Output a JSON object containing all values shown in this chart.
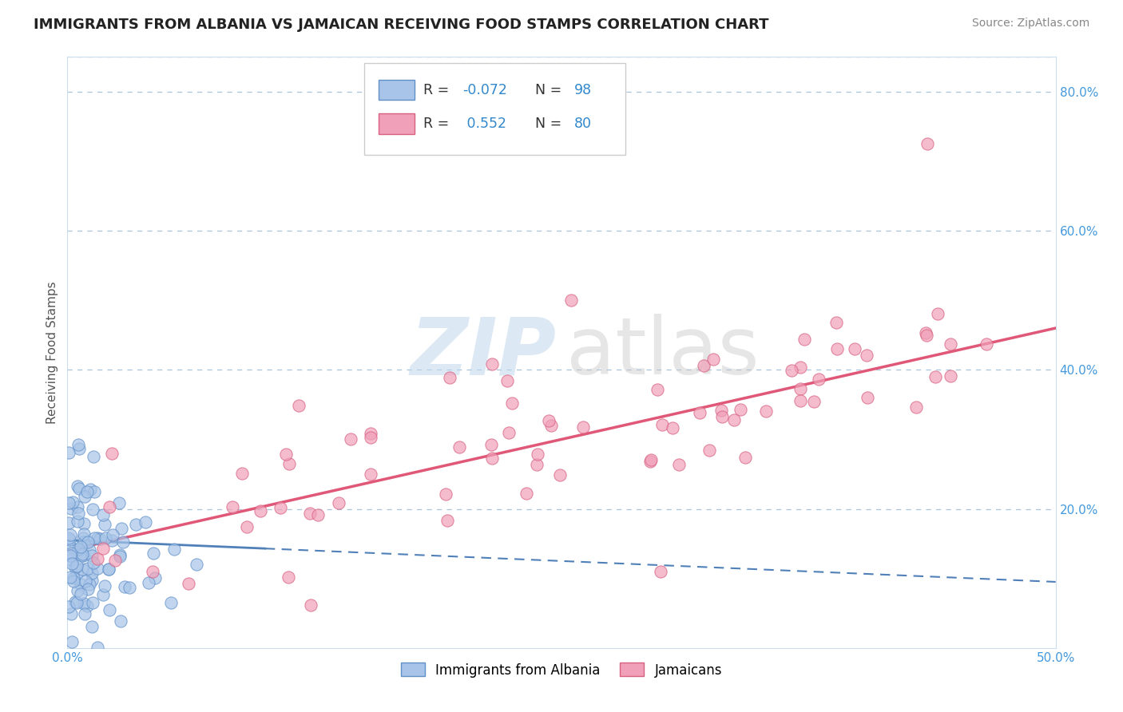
{
  "title": "IMMIGRANTS FROM ALBANIA VS JAMAICAN RECEIVING FOOD STAMPS CORRELATION CHART",
  "source": "Source: ZipAtlas.com",
  "ylabel": "Receiving Food Stamps",
  "xlim": [
    0.0,
    0.5
  ],
  "ylim": [
    0.0,
    0.85
  ],
  "legend_label1": "Immigrants from Albania",
  "legend_label2": "Jamaicans",
  "R1": "-0.072",
  "N1": "98",
  "R2": "0.552",
  "N2": "80",
  "albania_fill": "#a8c4e8",
  "albania_edge": "#6090c8",
  "jamaica_fill": "#f0a0b8",
  "jamaica_edge": "#d86080",
  "albania_line_color": "#5080b8",
  "jamaica_line_color": "#e05878",
  "grid_color": "#aac4dc",
  "title_color": "#222222",
  "source_color": "#888888",
  "tick_color": "#4499dd",
  "ylabel_color": "#555555",
  "watermark_zip_color": "#c0d8ee",
  "watermark_atlas_color": "#c8c8c8",
  "legend_box_color": "#dddddd",
  "legend_text_color": "#333333",
  "legend_num_color": "#3388cc"
}
